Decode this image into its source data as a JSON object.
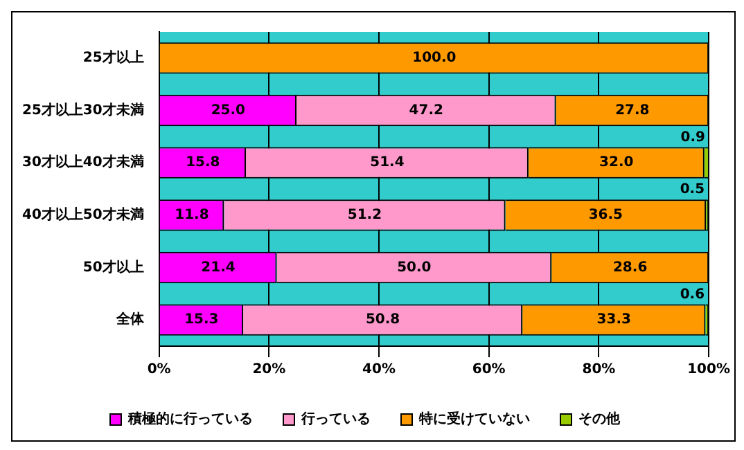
{
  "chart_data": {
    "type": "bar",
    "orientation": "horizontal",
    "stacked": true,
    "categories": [
      "25才以上",
      "25才以上30才未満",
      "30才以上40才未満",
      "40才以上50才未満",
      "50才以上",
      "全体"
    ],
    "series": [
      {
        "name": "積極的に行っている",
        "color": "#ff00ff",
        "values": [
          0,
          25.0,
          15.8,
          11.8,
          21.4,
          15.3
        ],
        "value_labels": [
          null,
          "25.0",
          "15.8",
          "11.8",
          "21.4",
          "15.3"
        ]
      },
      {
        "name": "行っている",
        "color": "#ff99cc",
        "values": [
          0,
          47.2,
          51.4,
          51.2,
          50.0,
          50.8
        ],
        "value_labels": [
          null,
          "47.2",
          "51.4",
          "51.2",
          "50.0",
          "50.8"
        ]
      },
      {
        "name": "特に受けていない",
        "color": "#ff9900",
        "values": [
          100.0,
          27.8,
          32.0,
          36.5,
          28.6,
          33.3
        ],
        "value_labels": [
          "100.0",
          "27.8",
          "32.0",
          "36.5",
          "28.6",
          "33.3"
        ]
      },
      {
        "name": "その他",
        "color": "#99cc00",
        "values": [
          0,
          0,
          0.9,
          0.5,
          0,
          0.6
        ],
        "value_labels": [
          null,
          null,
          "0.9",
          "0.5",
          null,
          "0.6"
        ]
      }
    ],
    "xlim": [
      0,
      100
    ],
    "xticks": [
      {
        "value": 0,
        "label": "0%"
      },
      {
        "value": 20,
        "label": "20%"
      },
      {
        "value": 40,
        "label": "40%"
      },
      {
        "value": 60,
        "label": "60%"
      },
      {
        "value": 80,
        "label": "80%"
      },
      {
        "value": 100,
        "label": "100%"
      }
    ],
    "grid": "x",
    "legend": "bottom"
  }
}
